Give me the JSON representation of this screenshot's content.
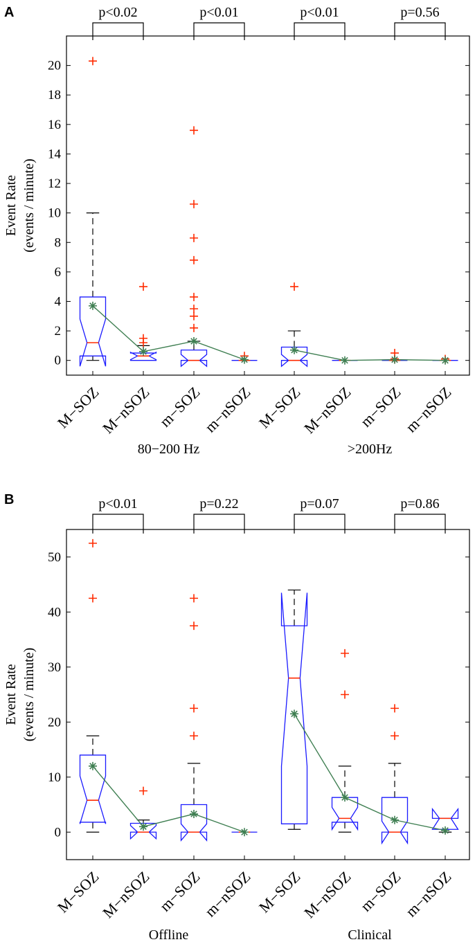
{
  "chart_data": [
    {
      "panel": "A",
      "type": "box",
      "ylabel_line1": "Event Rate",
      "ylabel_line2": "(events / minute)",
      "ylim": [
        -1,
        22
      ],
      "yticks": [
        0,
        2,
        4,
        6,
        8,
        10,
        12,
        14,
        16,
        18,
        20
      ],
      "categories": [
        "M−SOZ",
        "M−nSOZ",
        "m−SOZ",
        "m−nSOZ",
        "M−SOZ",
        "M−nSOZ",
        "m−SOZ",
        "m−nSOZ"
      ],
      "groups": [
        {
          "label": "80−200 Hz",
          "span": [
            0,
            3
          ]
        },
        {
          "label": ">200Hz",
          "span": [
            4,
            7
          ]
        }
      ],
      "boxes": [
        {
          "q1": 0.3,
          "median": 1.2,
          "q3": 4.3,
          "notch_lo": -0.4,
          "notch_hi": 2.8,
          "whisker_lo": 0,
          "whisker_hi": 10,
          "mean": 3.7,
          "outliers": [
            20.3
          ]
        },
        {
          "q1": 0,
          "median": 0.3,
          "q3": 0.5,
          "notch_lo": 0.05,
          "notch_hi": 0.55,
          "whisker_lo": 0,
          "whisker_hi": 1.0,
          "mean": 0.6,
          "outliers": [
            1.2,
            1.5,
            5.0
          ]
        },
        {
          "q1": 0,
          "median": 0,
          "q3": 0.7,
          "notch_lo": -0.4,
          "notch_hi": 0.4,
          "whisker_lo": 0,
          "whisker_hi": 1.3,
          "mean": 1.3,
          "outliers": [
            2.2,
            3.0,
            3.5,
            4.3,
            6.8,
            8.3,
            10.6,
            15.6
          ]
        },
        {
          "q1": 0,
          "median": 0,
          "q3": 0,
          "notch_lo": 0,
          "notch_hi": 0,
          "whisker_lo": 0,
          "whisker_hi": 0,
          "mean": 0.05,
          "outliers": [
            0.3
          ]
        },
        {
          "q1": 0,
          "median": 0,
          "q3": 0.9,
          "notch_lo": -0.4,
          "notch_hi": 0.4,
          "whisker_lo": 0,
          "whisker_hi": 2.0,
          "mean": 0.7,
          "outliers": [
            5.0
          ]
        },
        {
          "q1": 0,
          "median": 0,
          "q3": 0,
          "notch_lo": 0,
          "notch_hi": 0,
          "whisker_lo": 0,
          "whisker_hi": 0,
          "mean": 0.0,
          "outliers": []
        },
        {
          "q1": 0,
          "median": 0,
          "q3": 0,
          "notch_lo": 0,
          "notch_hi": 0,
          "whisker_lo": 0,
          "whisker_hi": 0,
          "mean": 0.05,
          "outliers": [
            0.1,
            0.5
          ]
        },
        {
          "q1": 0,
          "median": 0,
          "q3": 0,
          "notch_lo": 0,
          "notch_hi": 0,
          "whisker_lo": 0,
          "whisker_hi": 0,
          "mean": 0.0,
          "outliers": [
            0.1
          ]
        }
      ],
      "mean_line_segments": [
        [
          0,
          3
        ],
        [
          4,
          7
        ]
      ],
      "comparisons": [
        {
          "pair": [
            0,
            1
          ],
          "label": "p<0.02"
        },
        {
          "pair": [
            2,
            3
          ],
          "label": "p<0.01"
        },
        {
          "pair": [
            4,
            5
          ],
          "label": "p<0.01"
        },
        {
          "pair": [
            6,
            7
          ],
          "label": "p=0.56"
        }
      ]
    },
    {
      "panel": "B",
      "type": "box",
      "ylabel_line1": "Event Rate",
      "ylabel_line2": "(events / minute)",
      "ylim": [
        -5,
        55
      ],
      "yticks": [
        0,
        10,
        20,
        30,
        40,
        50
      ],
      "categories": [
        "M−SOZ",
        "M−nSOZ",
        "m−SOZ",
        "m−nSOZ",
        "M−SOZ",
        "M−nSOZ",
        "m−SOZ",
        "m−nSOZ"
      ],
      "groups": [
        {
          "label": "Offline",
          "span": [
            0,
            3
          ]
        },
        {
          "label": "Clinical",
          "span": [
            4,
            7
          ]
        }
      ],
      "boxes": [
        {
          "q1": 1.8,
          "median": 5.8,
          "q3": 14.0,
          "notch_lo": 1.5,
          "notch_hi": 10.2,
          "whisker_lo": 0,
          "whisker_hi": 17.5,
          "mean": 12.0,
          "outliers": [
            42.5,
            52.5
          ]
        },
        {
          "q1": 0,
          "median": 0,
          "q3": 1.6,
          "notch_lo": -1.2,
          "notch_hi": 1.2,
          "whisker_lo": 0,
          "whisker_hi": 2.2,
          "mean": 1.0,
          "outliers": [
            7.5
          ]
        },
        {
          "q1": 0,
          "median": 0,
          "q3": 5.0,
          "notch_lo": -1.5,
          "notch_hi": 1.5,
          "whisker_lo": 0,
          "whisker_hi": 12.5,
          "mean": 3.3,
          "outliers": [
            17.5,
            22.5,
            37.5,
            42.5
          ]
        },
        {
          "q1": 0,
          "median": 0,
          "q3": 0,
          "notch_lo": 0,
          "notch_hi": 0,
          "whisker_lo": 0,
          "whisker_hi": 0,
          "mean": 0.0,
          "outliers": []
        },
        {
          "q1": 1.5,
          "median": 28.0,
          "q3": 37.5,
          "notch_lo": 12.0,
          "notch_hi": 43.5,
          "whisker_lo": 0.5,
          "whisker_hi": 44.0,
          "mean": 21.5,
          "outliers": []
        },
        {
          "q1": 1.8,
          "median": 2.5,
          "q3": 6.3,
          "notch_lo": 0.5,
          "notch_hi": 4.5,
          "whisker_lo": 0,
          "whisker_hi": 12.0,
          "mean": 6.3,
          "outliers": [
            25.0,
            32.5
          ]
        },
        {
          "q1": 0,
          "median": 0,
          "q3": 6.3,
          "notch_lo": -2.0,
          "notch_hi": 2.0,
          "whisker_lo": 0,
          "whisker_hi": 12.5,
          "mean": 2.2,
          "outliers": [
            17.5,
            22.5
          ]
        },
        {
          "q1": 0.5,
          "median": 2.5,
          "q3": 2.5,
          "notch_lo": 0.5,
          "notch_hi": 4.2,
          "whisker_lo": 0,
          "whisker_hi": 2.5,
          "mean": 0.3,
          "outliers": []
        }
      ],
      "mean_line_segments": [
        [
          0,
          3
        ],
        [
          4,
          7
        ]
      ],
      "comparisons": [
        {
          "pair": [
            0,
            1
          ],
          "label": "p<0.01"
        },
        {
          "pair": [
            2,
            3
          ],
          "label": "p=0.22"
        },
        {
          "pair": [
            4,
            5
          ],
          "label": "p=0.07"
        },
        {
          "pair": [
            6,
            7
          ],
          "label": "p=0.86"
        }
      ]
    }
  ],
  "colors": {
    "box": "#1a1aff",
    "median": "#ff2a00",
    "outlier": "#ff2a00",
    "mean": "#3f7f52",
    "axis": "#000000"
  }
}
